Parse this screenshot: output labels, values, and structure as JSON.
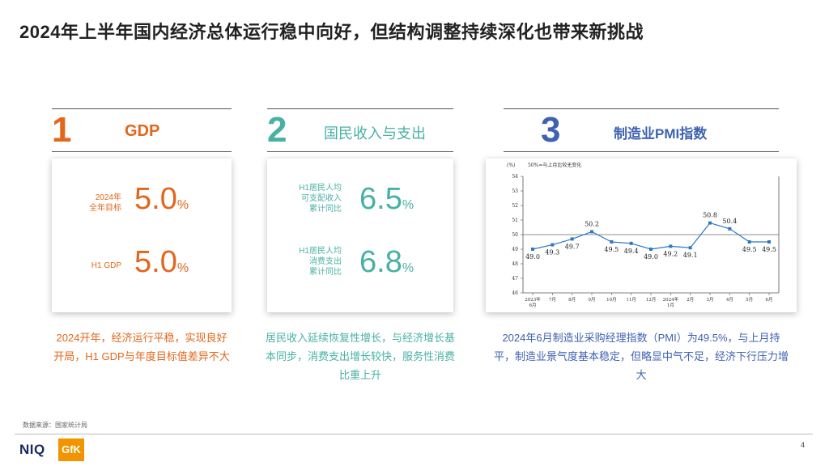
{
  "title": "2024年上半年国内经济总体运行稳中向好，但结构调整持续深化也带来新挑战",
  "sections": [
    {
      "number": "1",
      "heading": "GDP",
      "metrics": [
        {
          "label": "2024年\n全年目标",
          "value": "5.0",
          "unit": "%"
        },
        {
          "label": "H1 GDP",
          "value": "5.0",
          "unit": "%"
        }
      ],
      "summary": "2024开年，经济运行平稳，实现良好开局，H1 GDP与年度目标值差异不大"
    },
    {
      "number": "2",
      "heading": "国民收入与支出",
      "metrics": [
        {
          "label": "H1居民人均\n可支配收入\n累计同比",
          "value": "6.5",
          "unit": "%"
        },
        {
          "label": "H1居民人均\n消费支出\n累计同比",
          "value": "6.8",
          "unit": "%"
        }
      ],
      "summary": "居民收入延续恢复性增长，与经济增长基本同步，消费支出增长较快，服务性消费比重上升"
    },
    {
      "number": "3",
      "heading": "制造业PMI指数",
      "summary": "2024年6月制造业采购经理指数（PMI）为49.5%，与上月持平，制造业景气度基本稳定，但略显中气不足，经济下行压力增大"
    }
  ],
  "chart_data": {
    "type": "line",
    "title": "50%=与上月比较无变化",
    "ylabel": "(%)",
    "x": [
      "2023年6月",
      "7月",
      "8月",
      "9月",
      "10月",
      "11月",
      "12月",
      "2024年1月",
      "2月",
      "3月",
      "4月",
      "5月",
      "6月"
    ],
    "series": [
      {
        "values": [
          49.0,
          49.3,
          49.7,
          50.2,
          49.5,
          49.4,
          49.0,
          49.2,
          49.1,
          50.8,
          50.4,
          49.5,
          49.5
        ]
      }
    ],
    "data_labels": [
      "49.0",
      "49.3",
      "49.7",
      "50.2",
      "49.5",
      "49.4",
      "49.0",
      "49.2",
      "49.1",
      "50.8",
      "50.4",
      "49.5",
      "49.5"
    ],
    "yticks": [
      "46",
      "47",
      "48",
      "49",
      "50",
      "51",
      "52",
      "53",
      "54"
    ],
    "ylim": [
      46,
      54
    ],
    "reference_line": 50,
    "grid": false,
    "line_color": "#2e78c2"
  },
  "footer": {
    "source": "数据来源：国家统计局",
    "logo_niq": "NIQ",
    "logo_gfk": "GfK",
    "page_number": "4"
  }
}
